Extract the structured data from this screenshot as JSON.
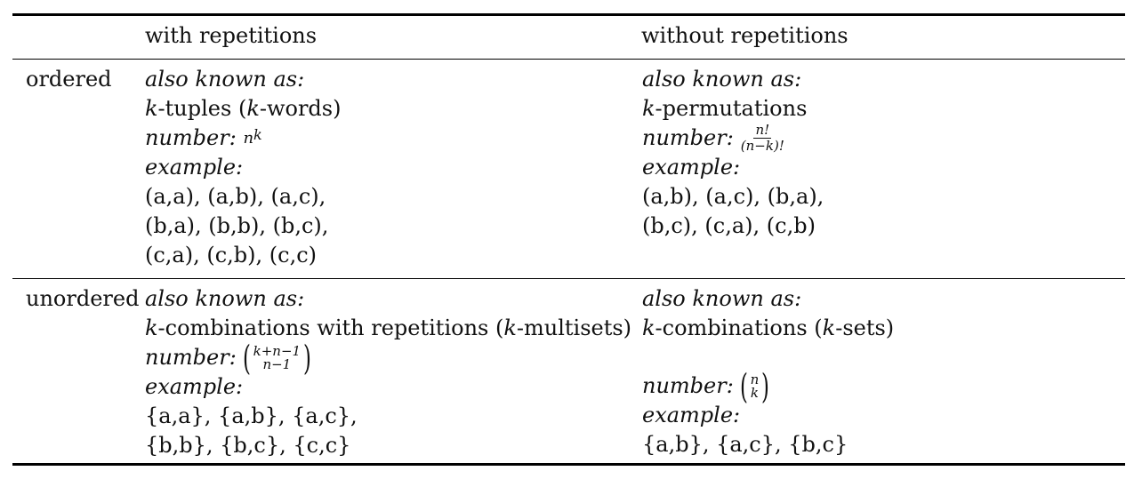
{
  "header": {
    "col_with": "with repetitions",
    "col_without": "without repetitions"
  },
  "rows": {
    "ordered": {
      "label": "ordered",
      "with": {
        "aka_label": "also known as:",
        "aka_k1": "k",
        "aka_t1": "-tuples (",
        "aka_k2": "k",
        "aka_t2": "-words)",
        "number_label": "number:",
        "number_base": "n",
        "number_exp": "k",
        "example_label": "example:",
        "examples": [
          "(a,a), (a,b), (a,c),",
          "(b,a), (b,b), (b,c),",
          "(c,a), (c,b), (c,c)"
        ]
      },
      "without": {
        "aka_label": "also known as:",
        "aka_k1": "k",
        "aka_t1": "-permutations",
        "number_label": "number:",
        "number_num": "n!",
        "number_den": "(n−k)!",
        "example_label": "example:",
        "examples": [
          "(a,b), (a,c), (b,a),",
          "(b,c), (c,a), (c,b)"
        ]
      }
    },
    "unordered": {
      "label": "unordered",
      "with": {
        "aka_label": "also known as:",
        "aka_k1": "k",
        "aka_t1": "-combinations with repetitions (",
        "aka_k2": "k",
        "aka_t2": "-multisets)",
        "number_label": "number:",
        "binom_top": "k+n−1",
        "binom_bottom": "n−1",
        "example_label": "example:",
        "examples": [
          "{a,a}, {a,b}, {a,c},",
          "{b,b}, {b,c}, {c,c}"
        ]
      },
      "without": {
        "aka_label": "also known as:",
        "aka_k1": "k",
        "aka_t1": "-combinations (",
        "aka_k2": "k",
        "aka_t2": "-sets)",
        "number_label": "number:",
        "binom_top": "n",
        "binom_bottom": "k",
        "example_label": "example:",
        "examples": [
          "{a,b}, {a,c}, {b,c}"
        ]
      }
    }
  }
}
